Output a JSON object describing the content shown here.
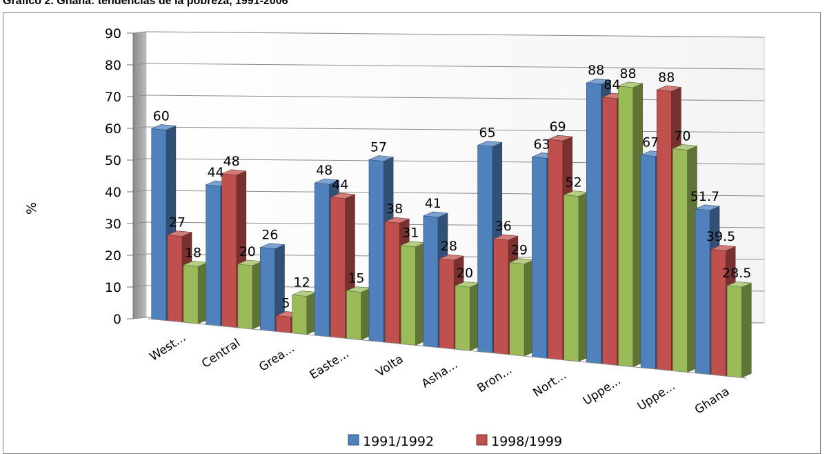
{
  "heading": "Grafico 2. Ghana: tendencias de la pobreza, 1991-2006",
  "chart_data": {
    "type": "bar",
    "title": "",
    "ylabel": "%",
    "xlabel": "",
    "ylim": [
      0,
      90
    ],
    "yticks": [
      0,
      10,
      20,
      30,
      40,
      50,
      60,
      70,
      80,
      90
    ],
    "grid": true,
    "legend": "bottom",
    "categories": [
      "West...",
      "Central",
      "Grea...",
      "Easte...",
      "Volta",
      "Asha...",
      "Bron...",
      "Nort...",
      "Uppe...",
      "Uppe...",
      "Ghana"
    ],
    "series": [
      {
        "name": "1991/1992",
        "color": "#4f81bd",
        "values": [
          60,
          44,
          26,
          48,
          57,
          41,
          65,
          63,
          88,
          67,
          51.7
        ],
        "labels": [
          "60",
          "44",
          "26",
          "48",
          "57",
          "41",
          "65",
          "63",
          "88",
          "67",
          "51.7"
        ]
      },
      {
        "name": "1998/1999",
        "color": "#c0504d",
        "values": [
          27,
          48,
          5,
          44,
          38,
          28,
          36,
          69,
          84,
          88,
          39.5
        ],
        "labels": [
          "27",
          "48",
          "5",
          "44",
          "38",
          "28",
          "36",
          "69",
          "84",
          "88",
          "39.5"
        ]
      },
      {
        "name": "",
        "color": "#9bbb59",
        "values": [
          18,
          20,
          12,
          15,
          31,
          20,
          29,
          52,
          88,
          70,
          28.5
        ],
        "labels": [
          "18",
          "20",
          "12",
          "15",
          "31",
          "20",
          "29",
          "52",
          "88",
          "70",
          "28.5"
        ]
      }
    ]
  }
}
